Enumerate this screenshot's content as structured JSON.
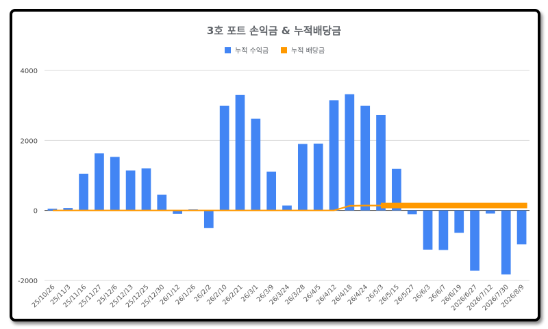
{
  "chart_data": {
    "type": "bar",
    "title": "3호 포트 손익금 & 누적배당금",
    "categories": [
      "25/10/26",
      "25/11/3",
      "25/11/16",
      "25/11/27",
      "25/12/6",
      "25/12/13",
      "25/12/25",
      "25/12/30",
      "26/1/12",
      "26/1/26",
      "26/2/2",
      "26/2/10",
      "26/2/21",
      "26/3/1",
      "26/3/9",
      "26/3/24",
      "26/3/28",
      "26/4/5",
      "26/4/12",
      "26/4/18",
      "26/4/24",
      "26/5/3",
      "26/5/15",
      "26/5/27",
      "26/6/3",
      "26/6/7",
      "26/6/19",
      "2026/6/27",
      "2026/7/12",
      "2026/7/30",
      "2026/8/9"
    ],
    "series": [
      {
        "name": "누적 수익금",
        "kind": "bar",
        "color": "#4285f4",
        "values": [
          50,
          70,
          1050,
          1630,
          1530,
          1140,
          1200,
          450,
          -100,
          30,
          -500,
          2990,
          3300,
          2620,
          1110,
          140,
          1900,
          1910,
          3150,
          3320,
          2990,
          2730,
          1190,
          -110,
          -1120,
          -1130,
          -640,
          -1720,
          -90,
          -1830,
          -970
        ]
      },
      {
        "name": "누적 배당금",
        "kind": "line",
        "color": "#ff9900",
        "values": [
          0,
          0,
          0,
          0,
          0,
          0,
          0,
          0,
          0,
          0,
          0,
          0,
          0,
          0,
          0,
          0,
          0,
          0,
          0,
          130,
          140,
          140,
          140,
          140,
          140,
          140,
          140,
          140,
          140,
          140,
          140
        ]
      }
    ],
    "ylim": [
      -2000,
      4000
    ],
    "yticks": [
      -2000,
      0,
      2000,
      4000
    ],
    "grid": true,
    "legend": "top-center"
  }
}
